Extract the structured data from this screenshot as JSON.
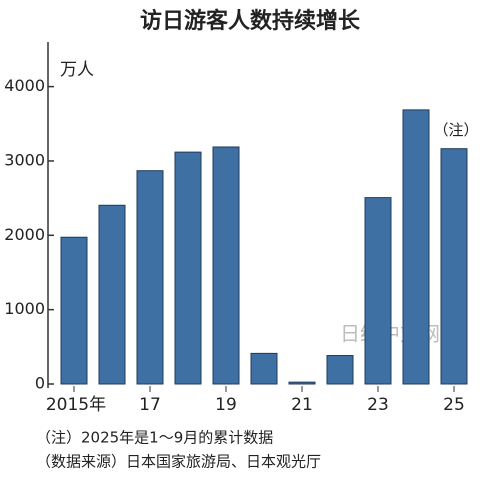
{
  "chart_data": {
    "type": "bar",
    "title": "访日游客人数持续增长",
    "unit_label": "万人",
    "categories": [
      "2015年",
      null,
      "17",
      null,
      "19",
      null,
      "21",
      null,
      "23",
      null,
      "25"
    ],
    "values": [
      1974,
      2404,
      2869,
      3119,
      3188,
      412,
      25,
      383,
      2507,
      3687,
      3165
    ],
    "color": "#3f70a3",
    "ylim": [
      0,
      4600
    ],
    "yticks": [
      0,
      1000,
      2000,
      3000,
      4000
    ],
    "annotation": "（注）",
    "notes": [
      "（注）2025年是1～9月的累计数据",
      "（数据来源）日本国家旅游局、日本观光厅"
    ],
    "watermark": "日经中文网"
  }
}
